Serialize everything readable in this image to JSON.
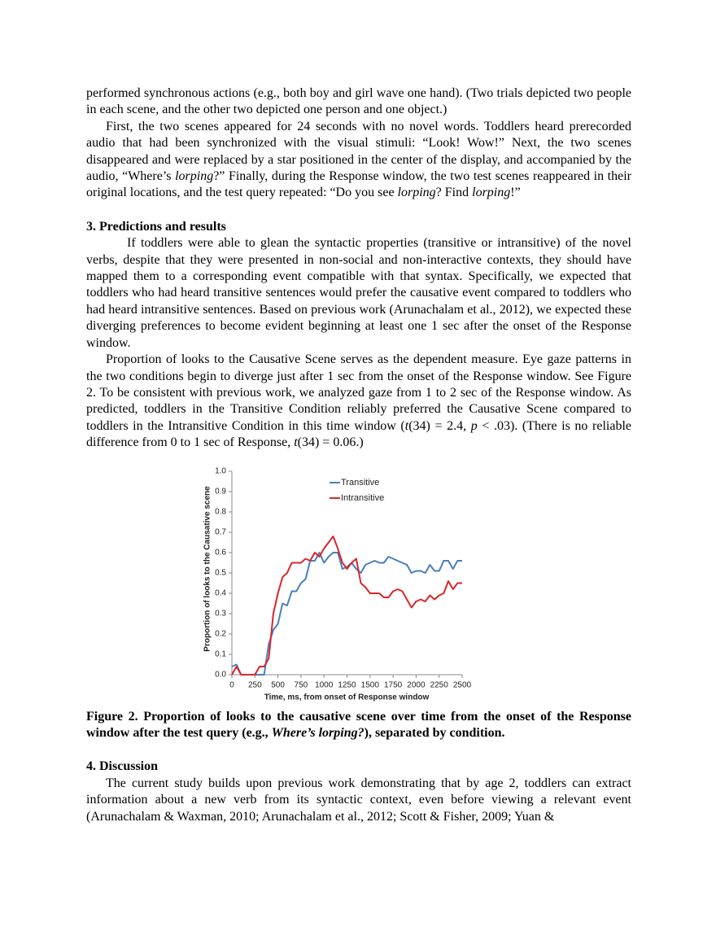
{
  "document": {
    "section_2_end": [
      [
        "performed synchronous actions (e.g., both boy and girl wave one hand). (Two trials depicted two people in each scene, and the other two depicted one person and one object.)"
      ],
      [
        "First, the two scenes appeared for 24 seconds with no novel words. Toddlers heard prerecorded audio that had been synchronized with the visual stimuli: “Look! Wow!” Next, the two scenes disappeared and were replaced by a star positioned in the center of the display, and accompanied by the audio, “Where’s ",
        {
          "text": "lorping",
          "italic": true
        },
        "?” Finally, during the Response window, the two test scenes reappeared in their original locations, and the test query repeated: “Do you see ",
        {
          "text": "lorping",
          "italic": true
        },
        "? Find ",
        {
          "text": "lorping",
          "italic": true
        },
        "!”"
      ]
    ],
    "section_3": {
      "heading": "3. Predictions and results",
      "paragraphs": [
        [
          "If toddlers were able to glean the syntactic properties (transitive or intransitive) of the novel verbs, despite that they were presented in non-social and non-interactive contexts, they should have mapped them to a corresponding event compatible with that syntax. Specifically, we expected that toddlers who had heard transitive sentences would prefer the causative event compared to toddlers who had heard intransitive sentences. Based on previous work (Arunachalam et al., 2012), we expected these diverging preferences to become evident beginning at least one 1 sec after the onset of the Response window."
        ],
        [
          "Proportion of looks to the Causative Scene serves as the dependent measure. Eye gaze patterns in the two conditions begin to diverge just after 1 sec from the onset of the Response window. See Figure 2. To be consistent with previous work, we analyzed gaze from 1 to 2 sec of the Response window. As predicted, toddlers in the Transitive Condition reliably preferred the Causative Scene compared to toddlers in the Intransitive Condition in this time window (",
          {
            "text": "t",
            "italic": true
          },
          "(34) = 2.4, ",
          {
            "text": "p",
            "italic": true
          },
          " < .03). (There is no reliable difference from 0 to 1 sec of Response, ",
          {
            "text": "t",
            "italic": true
          },
          "(34) = 0.06.)"
        ]
      ]
    },
    "figure": {
      "caption": [
        "Figure 2. Proportion of looks to the causative scene over time from the onset of the Response window after the test query (e.g., ",
        {
          "text": "Where’s lorping?",
          "italic": true
        },
        "), separated by condition."
      ]
    },
    "section_4": {
      "heading": "4. Discussion",
      "paragraphs": [
        [
          "The current study builds upon previous work demonstrating that by age 2, toddlers can extract information about a new verb from its syntactic context, even before viewing a relevant event (Arunachalam & Waxman, 2010; Arunachalam et al., 2012; Scott & Fisher, 2009; Yuan &"
        ]
      ]
    }
  },
  "chart_data": {
    "type": "line",
    "x_label": "Time, ms, from onset of Response window",
    "y_label": "Proportion of looks to the Causative scene",
    "x": [
      0,
      50,
      100,
      150,
      200,
      250,
      300,
      350,
      400,
      450,
      500,
      550,
      600,
      650,
      700,
      750,
      800,
      850,
      900,
      950,
      1000,
      1050,
      1100,
      1150,
      1200,
      1250,
      1300,
      1350,
      1400,
      1450,
      1500,
      1550,
      1600,
      1650,
      1700,
      1750,
      1800,
      1850,
      1900,
      1950,
      2000,
      2050,
      2100,
      2150,
      2200,
      2250,
      2300,
      2350,
      2400,
      2450,
      2500
    ],
    "series": [
      {
        "name": "Transitive",
        "color": "#4a7ebb",
        "values": [
          0.04,
          0.05,
          0,
          0,
          0,
          0,
          0,
          0,
          0.15,
          0.22,
          0.25,
          0.35,
          0.34,
          0.41,
          0.41,
          0.45,
          0.47,
          0.56,
          0.56,
          0.6,
          0.55,
          0.58,
          0.6,
          0.6,
          0.52,
          0.53,
          0.55,
          0.52,
          0.5,
          0.54,
          0.55,
          0.56,
          0.55,
          0.55,
          0.58,
          0.57,
          0.56,
          0.55,
          0.54,
          0.5,
          0.51,
          0.51,
          0.5,
          0.54,
          0.51,
          0.51,
          0.56,
          0.56,
          0.52,
          0.56,
          0.56
        ]
      },
      {
        "name": "Intransitive",
        "color": "#d9262b",
        "values": [
          0,
          0.04,
          0,
          0,
          0,
          0,
          0.04,
          0.04,
          0.08,
          0.3,
          0.4,
          0.48,
          0.5,
          0.55,
          0.55,
          0.55,
          0.57,
          0.56,
          0.6,
          0.58,
          0.62,
          0.65,
          0.68,
          0.62,
          0.55,
          0.52,
          0.55,
          0.57,
          0.45,
          0.43,
          0.4,
          0.4,
          0.4,
          0.38,
          0.38,
          0.41,
          0.42,
          0.41,
          0.37,
          0.33,
          0.36,
          0.37,
          0.36,
          0.39,
          0.37,
          0.39,
          0.4,
          0.46,
          0.42,
          0.45,
          0.45
        ]
      }
    ],
    "xlim": [
      0,
      2500
    ],
    "xticks": [
      0,
      250,
      500,
      750,
      1000,
      1250,
      1500,
      1750,
      2000,
      2250,
      2500
    ],
    "ylim": [
      0,
      1
    ],
    "yticks": [
      {
        "value": 0,
        "label": "0.0"
      },
      0.1,
      0.2,
      0.3,
      0.4,
      0.5,
      0.6,
      0.7,
      0.8,
      0.9,
      {
        "value": 1,
        "label": "1.0"
      }
    ],
    "legend": "top-right"
  }
}
